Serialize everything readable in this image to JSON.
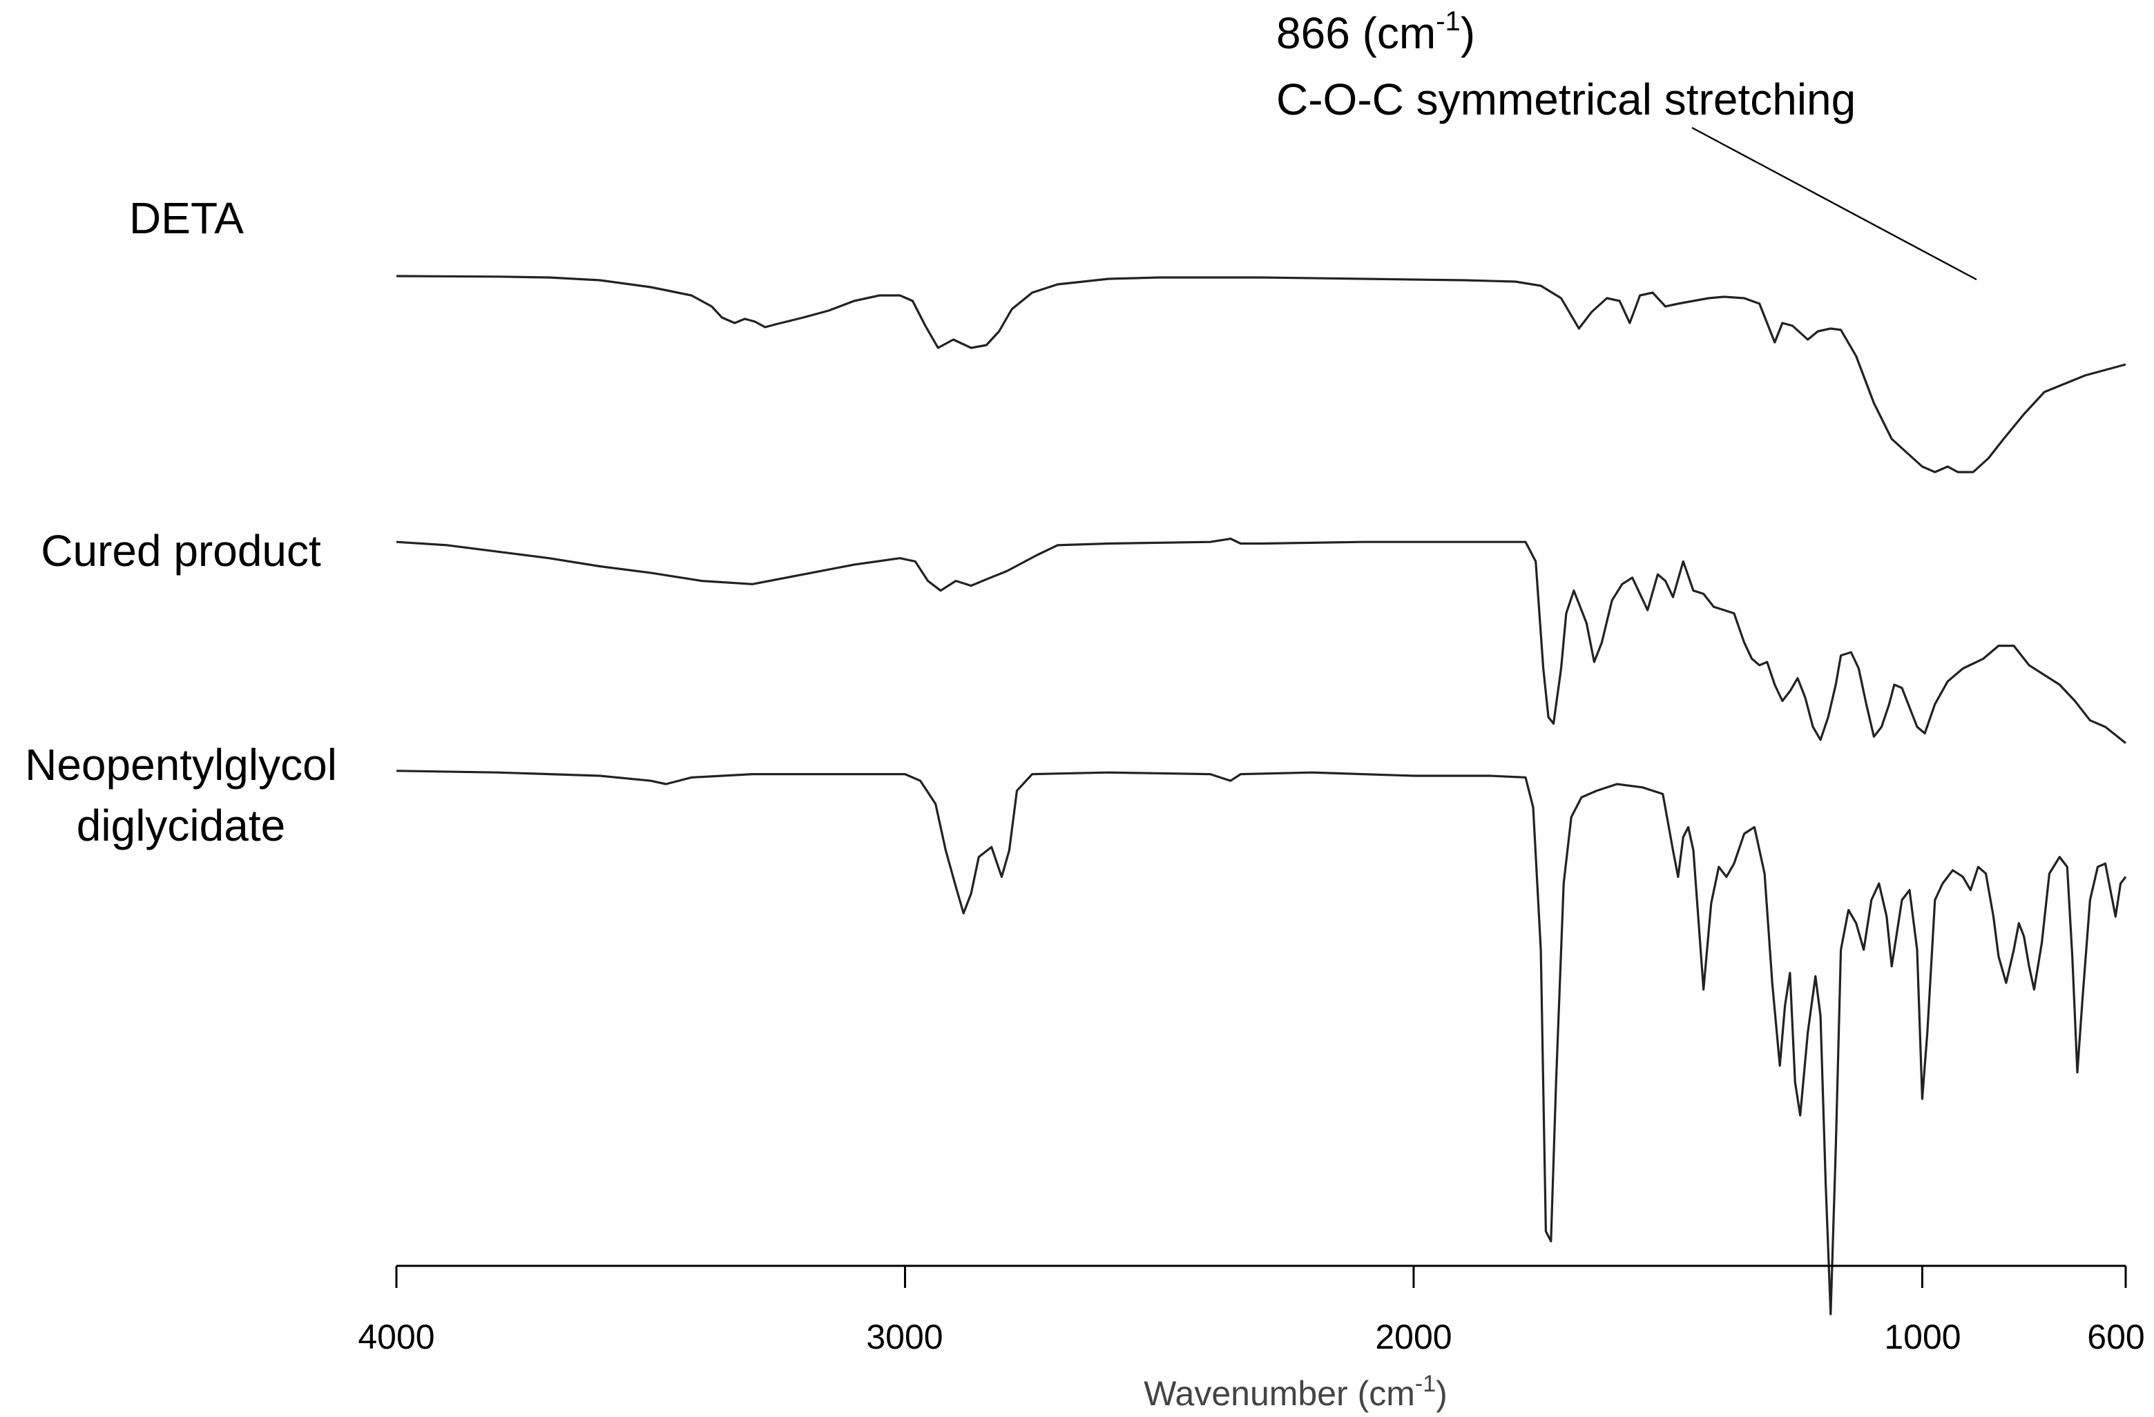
{
  "chart_data": {
    "type": "line",
    "title": "",
    "xlabel": "Wavenumber (cm",
    "xlabel_sup": "-1",
    "xlabel_close": ")",
    "xlim": [
      4000,
      600
    ],
    "x_reversed": true,
    "x_ticks": [
      "4000",
      "3000",
      "2000",
      "1000",
      "600"
    ],
    "x_tick_values": [
      4000,
      3000,
      2000,
      1000,
      600
    ],
    "ylabel": "",
    "y_axis_shown": false,
    "y_units": "relative transmittance (offset, 0 = top of trace frame, 100 = bottom)",
    "grid": false,
    "legend": "none (series labeled at left of each trace)",
    "annotation": {
      "line1_pre": "866 (cm",
      "line1_sup": "-1",
      "line1_post": ")",
      "line2": "C-O-C symmetrical stretching",
      "x": 866
    },
    "series": [
      {
        "name": "DETA",
        "baseline": 16,
        "points": [
          [
            4000,
            16
          ],
          [
            3800,
            16.2
          ],
          [
            3700,
            16.5
          ],
          [
            3600,
            17.5
          ],
          [
            3500,
            20
          ],
          [
            3420,
            23
          ],
          [
            3380,
            27
          ],
          [
            3360,
            31
          ],
          [
            3335,
            33
          ],
          [
            3315,
            31.5
          ],
          [
            3295,
            32.5
          ],
          [
            3275,
            34.5
          ],
          [
            3255,
            33.5
          ],
          [
            3200,
            31
          ],
          [
            3150,
            28.5
          ],
          [
            3100,
            25
          ],
          [
            3050,
            23
          ],
          [
            3010,
            23
          ],
          [
            2985,
            25
          ],
          [
            2960,
            34
          ],
          [
            2935,
            42
          ],
          [
            2905,
            39
          ],
          [
            2870,
            42
          ],
          [
            2840,
            41
          ],
          [
            2815,
            36
          ],
          [
            2790,
            28
          ],
          [
            2750,
            22
          ],
          [
            2700,
            19
          ],
          [
            2600,
            17
          ],
          [
            2500,
            16.5
          ],
          [
            2300,
            16.5
          ],
          [
            2100,
            17
          ],
          [
            1900,
            17.5
          ],
          [
            1800,
            18
          ],
          [
            1750,
            19.5
          ],
          [
            1710,
            24
          ],
          [
            1675,
            35
          ],
          [
            1650,
            29
          ],
          [
            1620,
            24
          ],
          [
            1595,
            25
          ],
          [
            1575,
            33
          ],
          [
            1555,
            23
          ],
          [
            1530,
            22
          ],
          [
            1505,
            27
          ],
          [
            1480,
            26
          ],
          [
            1450,
            25
          ],
          [
            1420,
            24
          ],
          [
            1390,
            23.5
          ],
          [
            1350,
            24
          ],
          [
            1320,
            26
          ],
          [
            1290,
            40
          ],
          [
            1275,
            33
          ],
          [
            1255,
            34
          ],
          [
            1225,
            39
          ],
          [
            1205,
            36
          ],
          [
            1180,
            35
          ],
          [
            1160,
            35.5
          ],
          [
            1130,
            45
          ],
          [
            1095,
            62
          ],
          [
            1060,
            75
          ],
          [
            1030,
            80
          ],
          [
            1000,
            85
          ],
          [
            975,
            87
          ],
          [
            950,
            85
          ],
          [
            930,
            87
          ],
          [
            900,
            87
          ],
          [
            870,
            82
          ],
          [
            840,
            75
          ],
          [
            800,
            66
          ],
          [
            760,
            58
          ],
          [
            720,
            55
          ],
          [
            680,
            52
          ],
          [
            640,
            50
          ],
          [
            600,
            48
          ]
        ]
      },
      {
        "name": "Cured product",
        "baseline": 16,
        "points": [
          [
            4000,
            16
          ],
          [
            3900,
            17
          ],
          [
            3800,
            19
          ],
          [
            3700,
            21
          ],
          [
            3600,
            23.5
          ],
          [
            3500,
            25.5
          ],
          [
            3400,
            28
          ],
          [
            3300,
            29
          ],
          [
            3200,
            26
          ],
          [
            3100,
            23
          ],
          [
            3010,
            21
          ],
          [
            2980,
            22
          ],
          [
            2955,
            28
          ],
          [
            2930,
            31
          ],
          [
            2900,
            28
          ],
          [
            2870,
            29.5
          ],
          [
            2840,
            27.5
          ],
          [
            2800,
            25
          ],
          [
            2740,
            20
          ],
          [
            2700,
            17
          ],
          [
            2600,
            16.5
          ],
          [
            2400,
            16
          ],
          [
            2360,
            15
          ],
          [
            2340,
            16.5
          ],
          [
            2300,
            16.5
          ],
          [
            2100,
            16
          ],
          [
            1900,
            16
          ],
          [
            1780,
            16
          ],
          [
            1760,
            22
          ],
          [
            1745,
            55
          ],
          [
            1735,
            70
          ],
          [
            1725,
            72
          ],
          [
            1710,
            55
          ],
          [
            1700,
            38
          ],
          [
            1685,
            31
          ],
          [
            1660,
            41
          ],
          [
            1645,
            53
          ],
          [
            1630,
            47
          ],
          [
            1610,
            34
          ],
          [
            1590,
            29
          ],
          [
            1570,
            27
          ],
          [
            1555,
            32
          ],
          [
            1540,
            37
          ],
          [
            1520,
            26
          ],
          [
            1505,
            28
          ],
          [
            1490,
            33
          ],
          [
            1470,
            22
          ],
          [
            1450,
            31
          ],
          [
            1430,
            32
          ],
          [
            1410,
            36
          ],
          [
            1390,
            37
          ],
          [
            1370,
            38
          ],
          [
            1350,
            47
          ],
          [
            1335,
            52
          ],
          [
            1320,
            54
          ],
          [
            1305,
            53
          ],
          [
            1290,
            60
          ],
          [
            1275,
            65
          ],
          [
            1260,
            62
          ],
          [
            1245,
            58
          ],
          [
            1230,
            64
          ],
          [
            1215,
            73
          ],
          [
            1200,
            77
          ],
          [
            1185,
            70
          ],
          [
            1170,
            60
          ],
          [
            1160,
            51
          ],
          [
            1140,
            50
          ],
          [
            1125,
            55
          ],
          [
            1110,
            66
          ],
          [
            1095,
            76
          ],
          [
            1080,
            73
          ],
          [
            1065,
            66
          ],
          [
            1055,
            60
          ],
          [
            1040,
            61
          ],
          [
            1025,
            67
          ],
          [
            1010,
            73
          ],
          [
            995,
            75
          ],
          [
            975,
            66
          ],
          [
            950,
            59
          ],
          [
            920,
            55
          ],
          [
            880,
            52
          ],
          [
            850,
            48
          ],
          [
            820,
            48
          ],
          [
            790,
            54
          ],
          [
            760,
            57
          ],
          [
            730,
            60
          ],
          [
            700,
            65
          ],
          [
            670,
            71
          ],
          [
            640,
            73
          ],
          [
            600,
            78
          ]
        ]
      },
      {
        "name": "Neopentylglycol diglycidate",
        "name_line1": "Neopentylglycol",
        "name_line2": "diglycidate",
        "baseline": 16,
        "points": [
          [
            4000,
            16
          ],
          [
            3800,
            16.5
          ],
          [
            3600,
            17.5
          ],
          [
            3500,
            19
          ],
          [
            3470,
            20
          ],
          [
            3420,
            18
          ],
          [
            3300,
            17
          ],
          [
            3100,
            17
          ],
          [
            3000,
            17
          ],
          [
            2970,
            19
          ],
          [
            2940,
            26
          ],
          [
            2920,
            40
          ],
          [
            2900,
            51
          ],
          [
            2885,
            59
          ],
          [
            2870,
            53
          ],
          [
            2855,
            42
          ],
          [
            2830,
            39
          ],
          [
            2810,
            48
          ],
          [
            2795,
            40
          ],
          [
            2780,
            22
          ],
          [
            2750,
            17
          ],
          [
            2600,
            16.5
          ],
          [
            2400,
            17
          ],
          [
            2360,
            19
          ],
          [
            2340,
            17
          ],
          [
            2200,
            16.5
          ],
          [
            2000,
            17.5
          ],
          [
            1850,
            17.5
          ],
          [
            1780,
            18
          ],
          [
            1765,
            27
          ],
          [
            1750,
            70
          ],
          [
            1740,
            155
          ],
          [
            1730,
            158
          ],
          [
            1720,
            110
          ],
          [
            1705,
            50
          ],
          [
            1690,
            30
          ],
          [
            1670,
            24
          ],
          [
            1640,
            22
          ],
          [
            1600,
            20
          ],
          [
            1550,
            21
          ],
          [
            1510,
            23
          ],
          [
            1490,
            40
          ],
          [
            1480,
            48
          ],
          [
            1470,
            36
          ],
          [
            1460,
            33
          ],
          [
            1450,
            40
          ],
          [
            1430,
            82
          ],
          [
            1415,
            56
          ],
          [
            1400,
            45
          ],
          [
            1385,
            48
          ],
          [
            1370,
            44
          ],
          [
            1350,
            35
          ],
          [
            1330,
            33
          ],
          [
            1310,
            47
          ],
          [
            1295,
            80
          ],
          [
            1280,
            105
          ],
          [
            1270,
            87
          ],
          [
            1260,
            77
          ],
          [
            1250,
            110
          ],
          [
            1240,
            120
          ],
          [
            1225,
            95
          ],
          [
            1210,
            78
          ],
          [
            1200,
            90
          ],
          [
            1190,
            140
          ],
          [
            1180,
            180
          ],
          [
            1170,
            130
          ],
          [
            1160,
            70
          ],
          [
            1145,
            58
          ],
          [
            1130,
            62
          ],
          [
            1115,
            70
          ],
          [
            1100,
            55
          ],
          [
            1085,
            50
          ],
          [
            1070,
            60
          ],
          [
            1060,
            75
          ],
          [
            1050,
            65
          ],
          [
            1040,
            55
          ],
          [
            1025,
            52
          ],
          [
            1010,
            70
          ],
          [
            1000,
            115
          ],
          [
            990,
            95
          ],
          [
            975,
            55
          ],
          [
            960,
            50
          ],
          [
            940,
            46
          ],
          [
            920,
            48
          ],
          [
            905,
            52
          ],
          [
            890,
            45
          ],
          [
            875,
            47
          ],
          [
            860,
            60
          ],
          [
            850,
            72
          ],
          [
            835,
            80
          ],
          [
            820,
            70
          ],
          [
            810,
            62
          ],
          [
            800,
            66
          ],
          [
            790,
            75
          ],
          [
            780,
            82
          ],
          [
            765,
            68
          ],
          [
            750,
            47
          ],
          [
            730,
            42
          ],
          [
            715,
            45
          ],
          [
            705,
            72
          ],
          [
            695,
            107
          ],
          [
            685,
            85
          ],
          [
            670,
            55
          ],
          [
            655,
            45
          ],
          [
            640,
            44
          ],
          [
            630,
            52
          ],
          [
            620,
            60
          ],
          [
            610,
            50
          ],
          [
            600,
            48
          ]
        ]
      }
    ]
  }
}
